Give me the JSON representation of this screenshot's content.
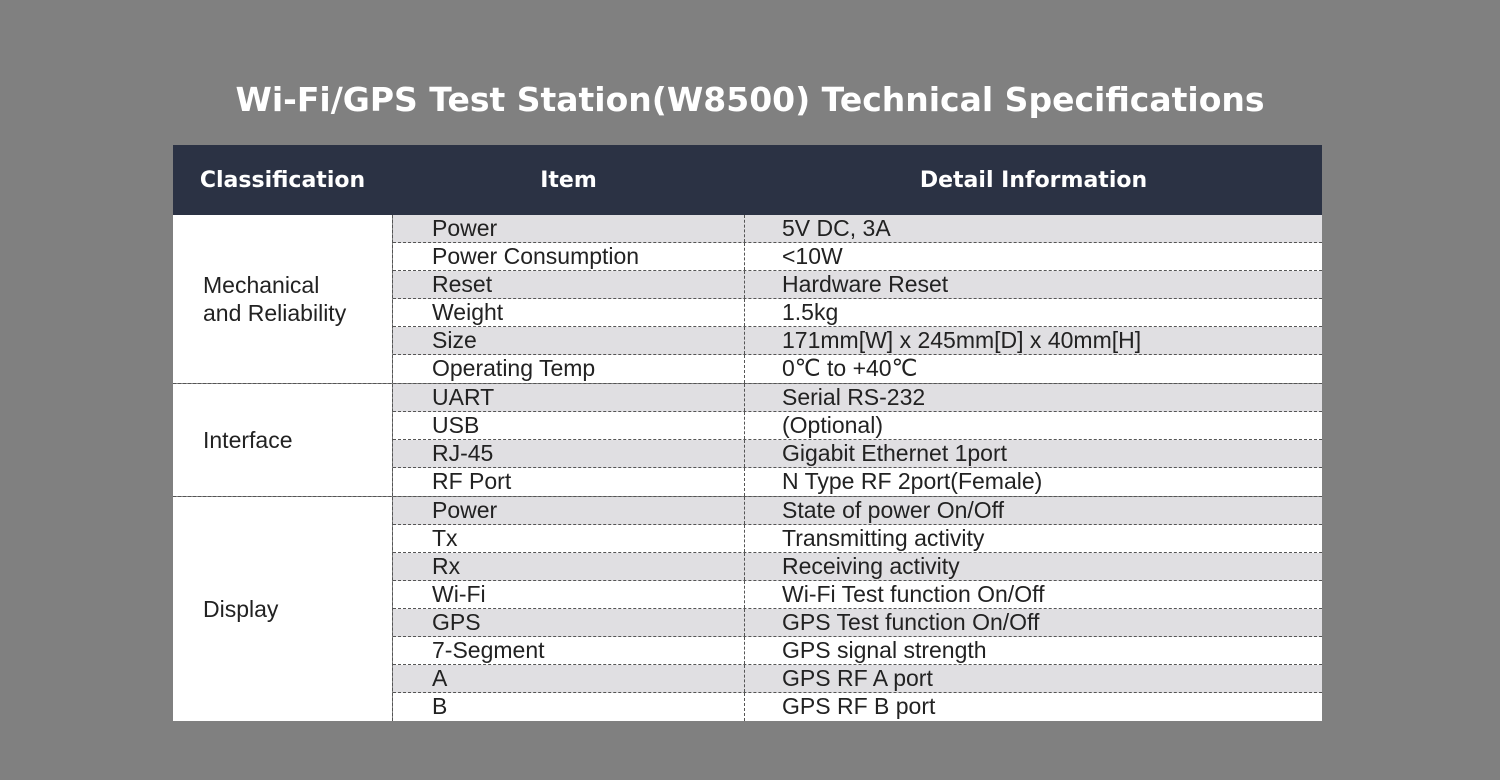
{
  "title": "Wi-Fi/GPS Test Station(W8500) Technical Specifications",
  "table": {
    "headers": {
      "classification": "Classification",
      "item": "Item",
      "detail": "Detail Information"
    },
    "groups": [
      {
        "label": "Mechanical\nand Reliability",
        "rows": [
          {
            "item": "Power",
            "detail": "5V DC, 3A"
          },
          {
            "item": "Power Consumption",
            "detail": "<10W"
          },
          {
            "item": "Reset",
            "detail": "Hardware Reset"
          },
          {
            "item": "Weight",
            "detail": "1.5kg"
          },
          {
            "item": "Size",
            "detail": "171mm[W] x 245mm[D] x 40mm[H]"
          },
          {
            "item": "Operating Temp",
            "detail": "0℃  to +40℃"
          }
        ]
      },
      {
        "label": "Interface",
        "rows": [
          {
            "item": "UART",
            "detail": "Serial RS-232"
          },
          {
            "item": "USB",
            "detail": "(Optional)"
          },
          {
            "item": "RJ-45",
            "detail": "Gigabit Ethernet 1port"
          },
          {
            "item": "RF Port",
            "detail": "N Type RF 2port(Female)"
          }
        ]
      },
      {
        "label": "Display",
        "rows": [
          {
            "item": "Power",
            "detail": "State of power On/Off"
          },
          {
            "item": "Tx",
            "detail": "Transmitting activity"
          },
          {
            "item": "Rx",
            "detail": "Receiving activity"
          },
          {
            "item": "Wi-Fi",
            "detail": "Wi-Fi Test function On/Off"
          },
          {
            "item": "GPS",
            "detail": "GPS Test function On/Off"
          },
          {
            "item": "7-Segment",
            "detail": "GPS signal strength"
          },
          {
            "item": "A",
            "detail": "GPS RF A port"
          },
          {
            "item": "B",
            "detail": "GPS RF B port"
          }
        ]
      }
    ]
  }
}
